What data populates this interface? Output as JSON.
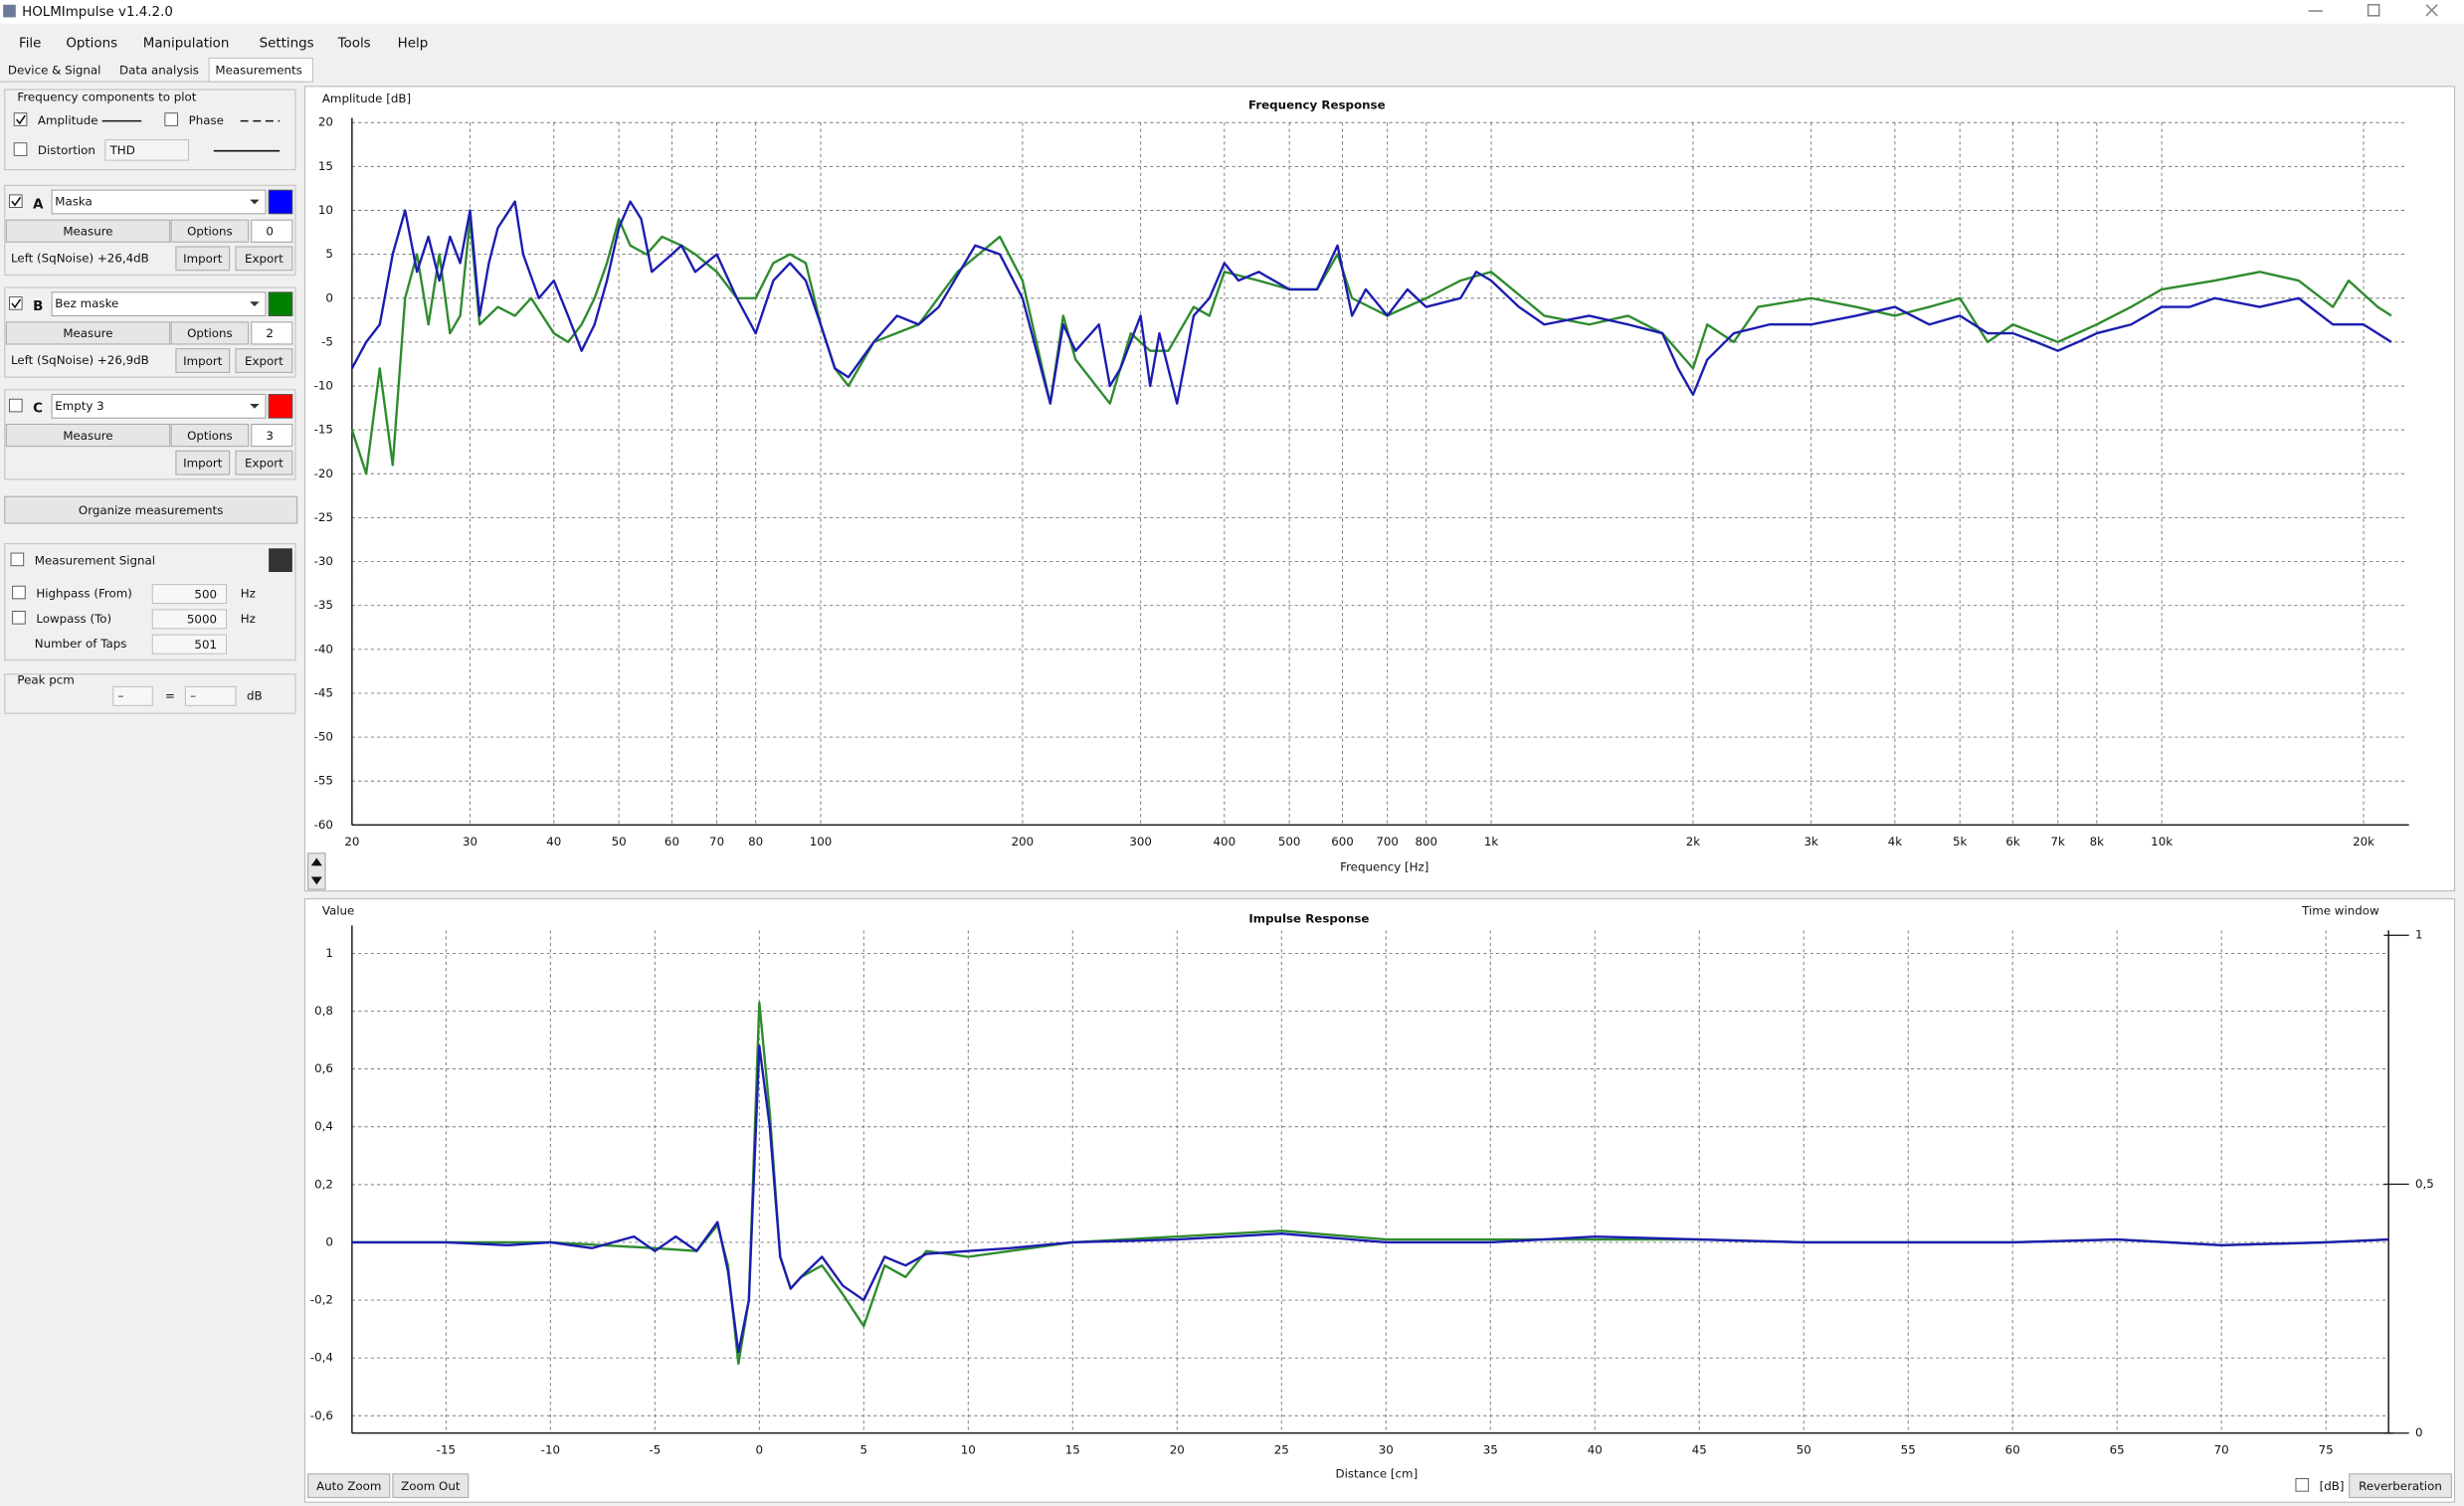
{
  "window_title": "HOLMImpulse v1.4.2.0",
  "menu": [
    "File",
    "Options",
    "Manipulation",
    "Settings",
    "Tools",
    "Help"
  ],
  "tabs": [
    "Device & Signal",
    "Data analysis",
    "Measurements"
  ],
  "components": {
    "title": "Frequency components to plot",
    "amplitude": {
      "label": "Amplitude",
      "checked": true
    },
    "phase": {
      "label": "Phase",
      "checked": false
    },
    "distortion": {
      "label": "Distortion",
      "checked": false,
      "mode": "THD"
    }
  },
  "measurements": [
    {
      "letter": "A",
      "name": "Maska",
      "checked": true,
      "color": "#0000ff",
      "measure": "Measure",
      "options": "Options",
      "index": 0,
      "info": "Left (SqNoise) +26,4dB",
      "import": "Import",
      "export": "Export"
    },
    {
      "letter": "B",
      "name": "Bez maske",
      "checked": true,
      "color": "#008000",
      "measure": "Measure",
      "options": "Options",
      "index": 2,
      "info": "Left (SqNoise) +26,9dB",
      "import": "Import",
      "export": "Export"
    },
    {
      "letter": "C",
      "name": "Empty 3",
      "checked": false,
      "color": "#ff0000",
      "measure": "Measure",
      "options": "Options",
      "index": 3,
      "import": "Import",
      "export": "Export"
    }
  ],
  "organize": "Organize measurements",
  "signal": {
    "label": "Measurement Signal",
    "checked": false,
    "highpass": {
      "label": "Highpass (From)",
      "checked": false,
      "value": 500,
      "unit": "Hz"
    },
    "lowpass": {
      "label": "Lowpass (To)",
      "checked": false,
      "value": 5000,
      "unit": "Hz"
    },
    "taps": {
      "label": "Number of Taps",
      "value": 501
    }
  },
  "peak": {
    "label": "Peak pcm",
    "left": "–",
    "equals": "=",
    "right": "–",
    "unit": "dB"
  },
  "buttons": {
    "auto_zoom": "Auto Zoom",
    "zoom_out": "Zoom Out",
    "db": {
      "label": "[dB]",
      "checked": false
    },
    "reverberation": "Reverberation"
  },
  "chart_data": [
    {
      "type": "line",
      "title": "Frequency Response",
      "y_label": "Amplitude [dB]",
      "x_label": "Frequency [Hz]",
      "xscale": "log",
      "grid": true,
      "xlim": [
        20,
        23000
      ],
      "ylim": [
        -60,
        20
      ],
      "xticks": [
        20,
        30,
        40,
        50,
        60,
        70,
        80,
        100,
        200,
        300,
        400,
        500,
        600,
        700,
        800,
        {
          "value": 1000,
          "label": "1k"
        },
        {
          "value": 2000,
          "label": "2k"
        },
        {
          "value": 3000,
          "label": "3k"
        },
        {
          "value": 4000,
          "label": "4k"
        },
        {
          "value": 5000,
          "label": "5k"
        },
        {
          "value": 6000,
          "label": "6k"
        },
        {
          "value": 7000,
          "label": "7k"
        },
        {
          "value": 8000,
          "label": "8k"
        },
        {
          "value": 10000,
          "label": "10k"
        },
        {
          "value": 20000,
          "label": "20k"
        }
      ],
      "yticks": [
        -60,
        -55,
        -50,
        -45,
        -40,
        -35,
        -30,
        -25,
        -20,
        -15,
        -10,
        -5,
        0,
        5,
        10,
        15,
        20
      ],
      "series": [
        {
          "color": "#2e8b2e",
          "x": [
            20,
            21,
            22,
            23,
            24,
            25,
            26,
            27,
            28,
            29,
            30,
            31,
            33,
            35,
            37,
            40,
            42,
            44,
            46,
            48,
            50,
            52,
            55,
            58,
            62,
            65,
            70,
            75,
            80,
            85,
            90,
            95,
            100,
            105,
            110,
            120,
            140,
            160,
            185,
            200,
            220,
            230,
            240,
            270,
            290,
            310,
            330,
            360,
            380,
            400,
            450,
            500,
            550,
            590,
            620,
            700,
            800,
            900,
            1000,
            1200,
            1400,
            1600,
            1800,
            2000,
            2100,
            2300,
            2500,
            3000,
            3500,
            4000,
            4500,
            5000,
            5500,
            6000,
            7000,
            8000,
            9000,
            10000,
            12000,
            14000,
            16000,
            18000,
            19000,
            21000,
            22000
          ],
          "values": [
            -15,
            -20,
            -8,
            -19,
            0,
            5,
            -3,
            5,
            -4,
            -2,
            9,
            -3,
            -1,
            -2,
            0,
            -4,
            -5,
            -3,
            0,
            4,
            9,
            6,
            5,
            7,
            6,
            5,
            3,
            0,
            0,
            4,
            5,
            4,
            -3,
            -8,
            -10,
            -5,
            -3,
            3,
            7,
            2,
            -12,
            -2,
            -7,
            -12,
            -4,
            -6,
            -6,
            -1,
            -2,
            3,
            2,
            1,
            1,
            5,
            0,
            -2,
            0,
            2,
            3,
            -2,
            -3,
            -2,
            -4,
            -8,
            -3,
            -5,
            -1,
            0,
            -1,
            -2,
            -1,
            0,
            -5,
            -3,
            -5,
            -3,
            -1,
            1,
            2,
            3,
            2,
            -1,
            2,
            -1,
            -2
          ]
        },
        {
          "color": "#1c1cb0",
          "x": [
            20,
            21,
            22,
            23,
            24,
            25,
            26,
            27,
            28,
            29,
            30,
            31,
            32,
            33,
            35,
            36,
            38,
            40,
            42,
            44,
            46,
            48,
            50,
            52,
            54,
            56,
            60,
            62,
            65,
            70,
            75,
            80,
            85,
            90,
            95,
            100,
            105,
            110,
            120,
            130,
            140,
            150,
            170,
            185,
            200,
            220,
            230,
            240,
            260,
            270,
            280,
            300,
            310,
            320,
            340,
            360,
            380,
            400,
            420,
            450,
            500,
            550,
            590,
            620,
            650,
            700,
            750,
            800,
            900,
            950,
            1000,
            1100,
            1200,
            1400,
            1600,
            1800,
            1900,
            2000,
            2100,
            2300,
            2600,
            3000,
            3500,
            4000,
            4500,
            5000,
            5500,
            6000,
            6500,
            7000,
            7500,
            8000,
            9000,
            10000,
            11000,
            12000,
            14000,
            16000,
            18000,
            20000,
            22000
          ],
          "values": [
            -8,
            -5,
            -3,
            5,
            10,
            3,
            7,
            2,
            7,
            4,
            10,
            -2,
            4,
            8,
            11,
            5,
            0,
            2,
            -2,
            -6,
            -3,
            2,
            8,
            11,
            9,
            3,
            5,
            6,
            3,
            5,
            0,
            -4,
            2,
            4,
            2,
            -3,
            -8,
            -9,
            -5,
            -2,
            -3,
            -1,
            6,
            5,
            0,
            -12,
            -3,
            -6,
            -3,
            -10,
            -8,
            -2,
            -10,
            -4,
            -12,
            -2,
            0,
            4,
            2,
            3,
            1,
            1,
            6,
            -2,
            1,
            -2,
            1,
            -1,
            0,
            3,
            2,
            -1,
            -3,
            -2,
            -3,
            -4,
            -8,
            -11,
            -7,
            -4,
            -3,
            -3,
            -2,
            -1,
            -3,
            -2,
            -4,
            -4,
            -5,
            -6,
            -5,
            -4,
            -3,
            -1,
            -1,
            0,
            -1,
            0,
            -3,
            -3,
            -5
          ]
        }
      ]
    },
    {
      "type": "line",
      "title": "Impulse Response",
      "y_label": "Value",
      "y2_label": "Time window",
      "x_label": "Distance [cm]",
      "grid": true,
      "xlim": [
        -19.5,
        78
      ],
      "ylim": [
        -0.66,
        1.08
      ],
      "y2lim": [
        0,
        1.01
      ],
      "xticks": [
        -15,
        -10,
        -5,
        0,
        5,
        10,
        15,
        20,
        25,
        30,
        35,
        40,
        45,
        50,
        55,
        60,
        65,
        70,
        75
      ],
      "yticks": [
        {
          "value": -0.6,
          "label": "-0,6"
        },
        {
          "value": -0.4,
          "label": "-0,4"
        },
        {
          "value": -0.2,
          "label": "-0,2"
        },
        0,
        {
          "value": 0.2,
          "label": "0,2"
        },
        {
          "value": 0.4,
          "label": "0,4"
        },
        {
          "value": 0.6,
          "label": "0,6"
        },
        {
          "value": 0.8,
          "label": "0,8"
        },
        1
      ],
      "y2ticks": [
        0,
        {
          "value": 0.5,
          "label": "0,5"
        },
        1
      ],
      "series": [
        {
          "color": "#2e8b2e",
          "x": [
            -19.5,
            -15,
            -10,
            -5,
            -3,
            -2,
            -1.5,
            -1,
            -0.5,
            0,
            0.5,
            1,
            1.5,
            2,
            3,
            4,
            5,
            6,
            7,
            8,
            10,
            12,
            15,
            20,
            25,
            30,
            35,
            40,
            45,
            50,
            55,
            60,
            65,
            70,
            75,
            78
          ],
          "values": [
            0,
            0,
            0,
            -0.02,
            -0.03,
            0.06,
            -0.08,
            -0.42,
            -0.2,
            0.83,
            0.45,
            -0.05,
            -0.16,
            -0.12,
            -0.08,
            -0.18,
            -0.29,
            -0.08,
            -0.12,
            -0.03,
            -0.05,
            -0.03,
            0,
            0.02,
            0.04,
            0.01,
            0.01,
            0.01,
            0.01,
            0,
            0,
            0,
            0.01,
            -0.01,
            0,
            0.01
          ]
        },
        {
          "color": "#1c1cb0",
          "x": [
            -19.5,
            -15,
            -12,
            -10,
            -8,
            -6,
            -5,
            -4,
            -3,
            -2,
            -1.5,
            -1,
            -0.5,
            0,
            0.5,
            1,
            1.5,
            2,
            3,
            4,
            5,
            6,
            7,
            8,
            10,
            12,
            15,
            20,
            25,
            30,
            35,
            40,
            45,
            50,
            55,
            60,
            65,
            70,
            75,
            78
          ],
          "values": [
            0,
            0,
            -0.01,
            0,
            -0.02,
            0.02,
            -0.03,
            0.02,
            -0.03,
            0.07,
            -0.1,
            -0.38,
            -0.2,
            0.68,
            0.4,
            -0.05,
            -0.16,
            -0.12,
            -0.05,
            -0.15,
            -0.2,
            -0.05,
            -0.08,
            -0.04,
            -0.03,
            -0.02,
            0,
            0.01,
            0.03,
            0,
            0,
            0.02,
            0.01,
            0,
            0,
            0,
            0.01,
            -0.01,
            0,
            0.01
          ]
        }
      ]
    }
  ]
}
